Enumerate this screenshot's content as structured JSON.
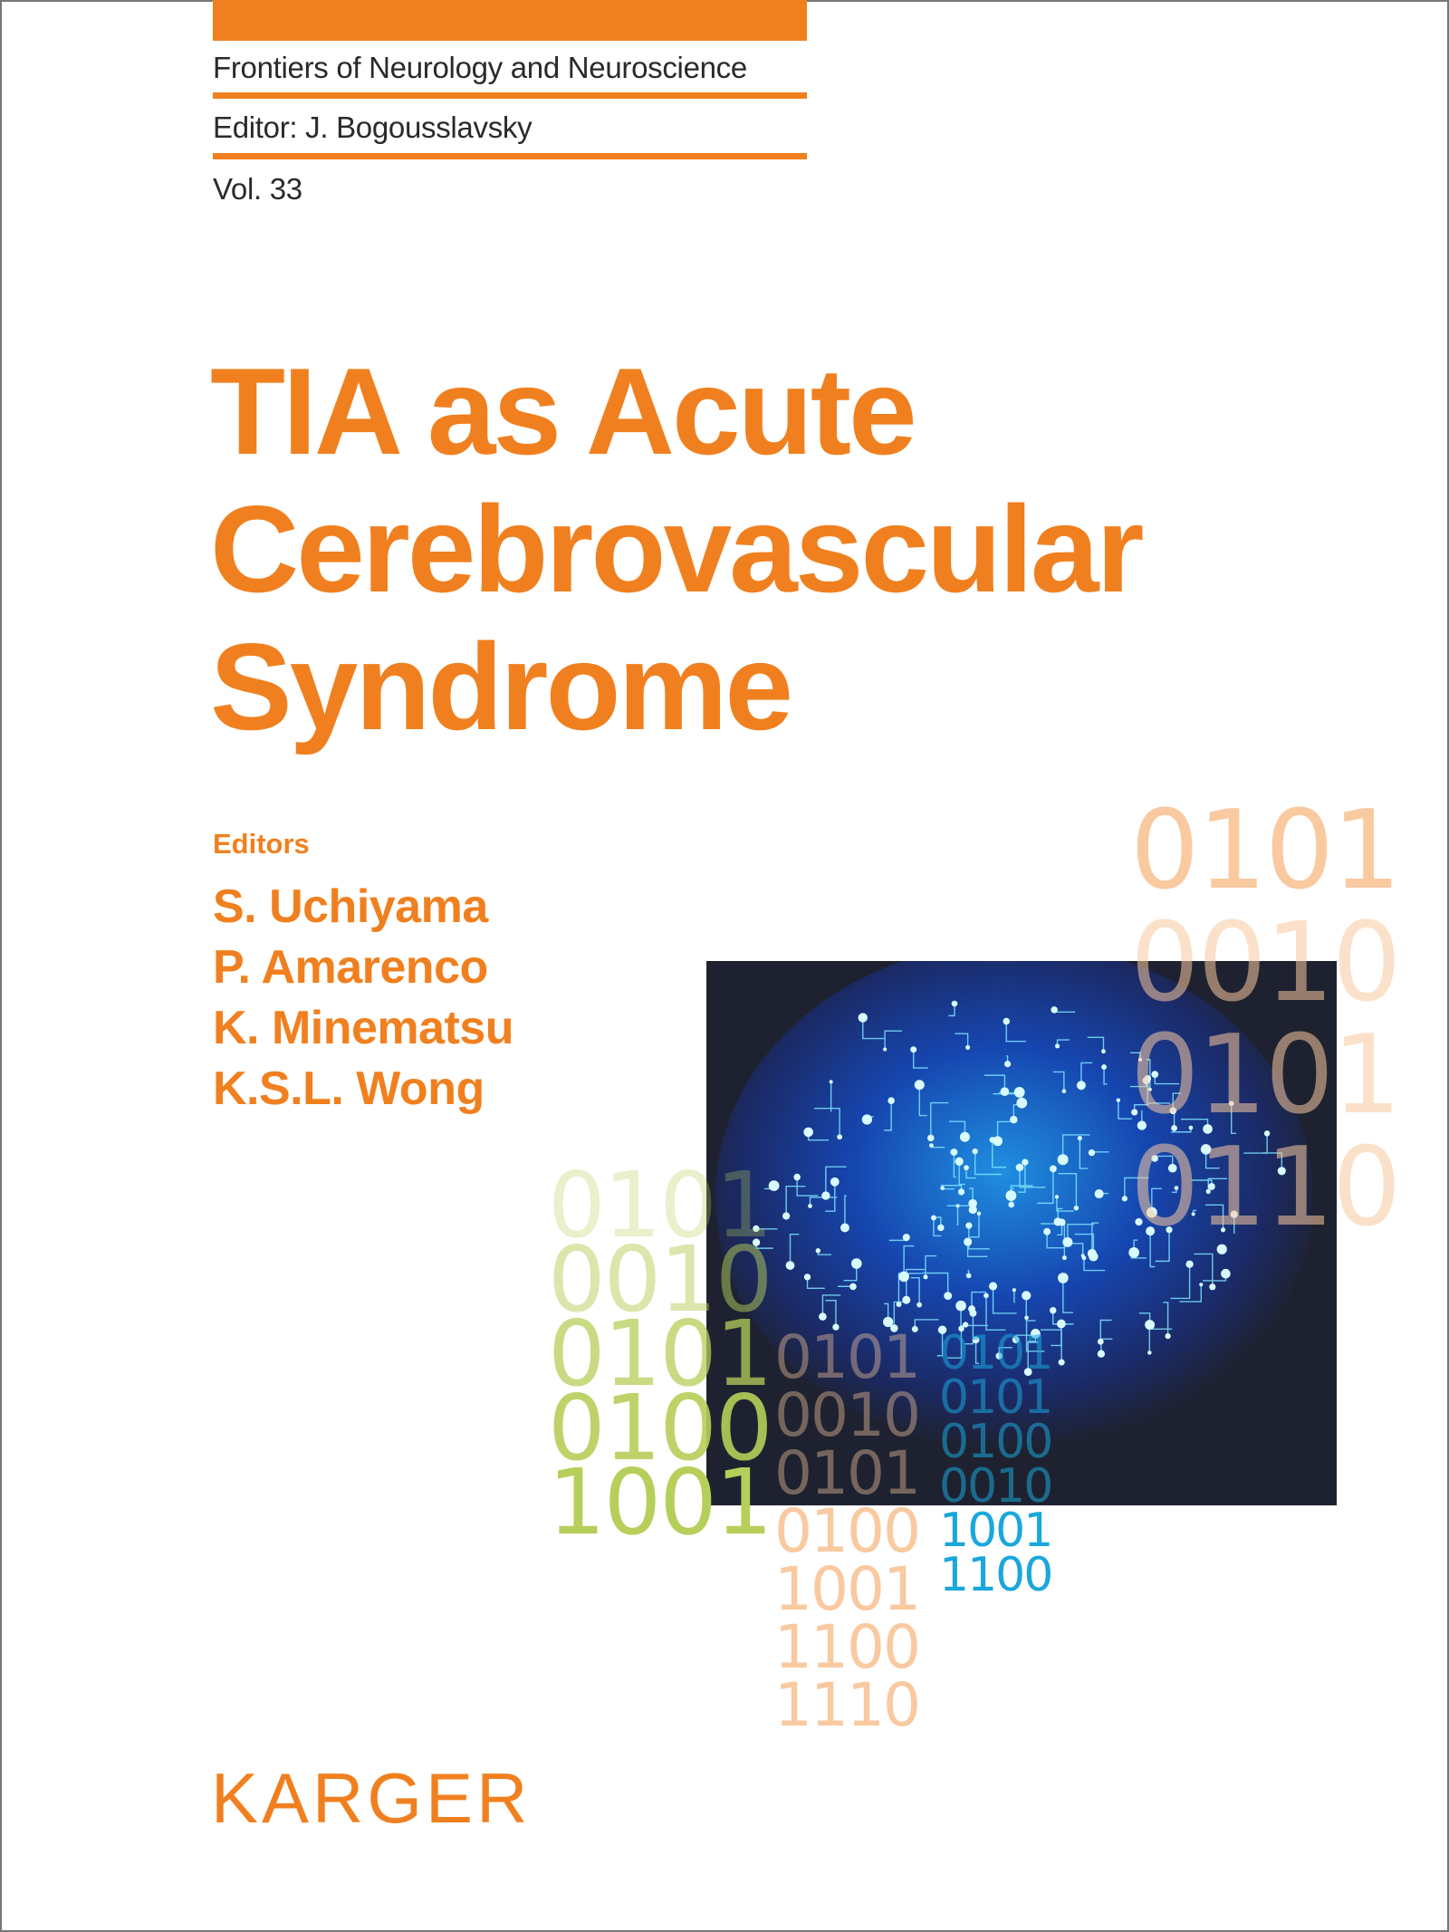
{
  "series": {
    "name": "Frontiers of Neurology and Neuroscience",
    "editor": "Editor: J. Bogousslavsky",
    "volume": "Vol. 33"
  },
  "title": {
    "lines": [
      "TIA as Acute",
      "Cerebrovascular",
      "Syndrome"
    ]
  },
  "editors": {
    "label": "Editors",
    "names": [
      "S. Uchiyama",
      "P. Amarenco",
      "K. Minematsu",
      "K.S.L. Wong"
    ]
  },
  "binary_decoration": {
    "top_right": [
      "0101",
      "0010",
      "0101",
      "0110"
    ],
    "green": [
      "0101",
      "0010",
      "0101",
      "0100",
      "1001"
    ],
    "peach": [
      "0101",
      "0010",
      "0101",
      "0100",
      "1001",
      "1100",
      "1110"
    ],
    "blue": [
      "0101",
      "0101",
      "0100",
      "0010",
      "1001",
      "1100"
    ]
  },
  "publisher": {
    "logo": "KARGER"
  },
  "colors": {
    "brand_orange": "#f0801f",
    "peach": "#f9c9a0",
    "green": "#b6cf5a",
    "blue": "#1aa7dc",
    "image_bg": "#1e2230"
  }
}
